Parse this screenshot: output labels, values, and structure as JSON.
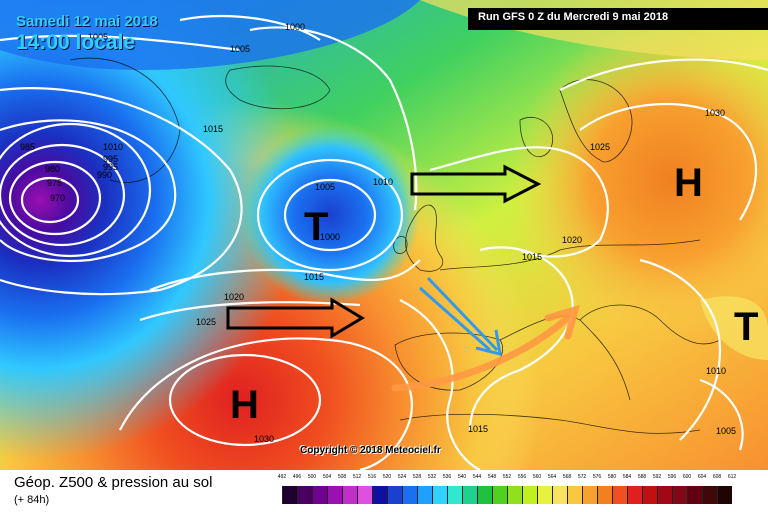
{
  "header": {
    "date": "Samedi 12 mai 2018",
    "time": "14:00 locale",
    "run": "Run GFS 0 Z du Mercredi 9 mai 2018"
  },
  "footer": {
    "title": "Géop. Z500 & pression au sol",
    "subtitle": "(+ 84h)",
    "copyright": "Copyright © 2018 Meteociel.fr"
  },
  "systems": [
    {
      "type": "H",
      "region": "Açores"
    },
    {
      "type": "H",
      "region": "Europe de l'Est"
    },
    {
      "type": "T",
      "region": "Atlantique Nord / Irlande"
    },
    {
      "type": "T",
      "region": "Grèce / Turquie"
    }
  ],
  "isobars": [
    "1005",
    "1000",
    "1005",
    "985",
    "980",
    "975",
    "970",
    "995",
    "990",
    "1010",
    "1015",
    "1005",
    "1010",
    "1000",
    "1015",
    "1020",
    "1025",
    "1030",
    "1025",
    "1020",
    "1015",
    "1030",
    "1010",
    "1005",
    "1015",
    "995"
  ],
  "legend": {
    "ticks": [
      "492",
      "496",
      "500",
      "504",
      "508",
      "512",
      "516",
      "520",
      "524",
      "528",
      "532",
      "536",
      "540",
      "544",
      "548",
      "552",
      "556",
      "560",
      "564",
      "568",
      "572",
      "576",
      "580",
      "584",
      "588",
      "592",
      "596",
      "600",
      "604",
      "608",
      "612"
    ],
    "colors": [
      "#200030",
      "#4a0060",
      "#700090",
      "#9a10b0",
      "#c030c8",
      "#e050e0",
      "#1010a0",
      "#1a40d0",
      "#1a70f0",
      "#20a0ff",
      "#30d0ff",
      "#30e8d0",
      "#20d090",
      "#20c040",
      "#50d020",
      "#90e020",
      "#c0f020",
      "#e8f040",
      "#f8e060",
      "#f8c840",
      "#f8a030",
      "#f08020",
      "#f05020",
      "#e02020",
      "#c01010",
      "#a00818",
      "#800818",
      "#600010",
      "#400808",
      "#200404"
    ]
  },
  "colors": {
    "date_text": "#33ccff",
    "arrow_black": "#000000",
    "arrow_blue": "#3399ee",
    "arrow_orange": "#ff9944"
  }
}
